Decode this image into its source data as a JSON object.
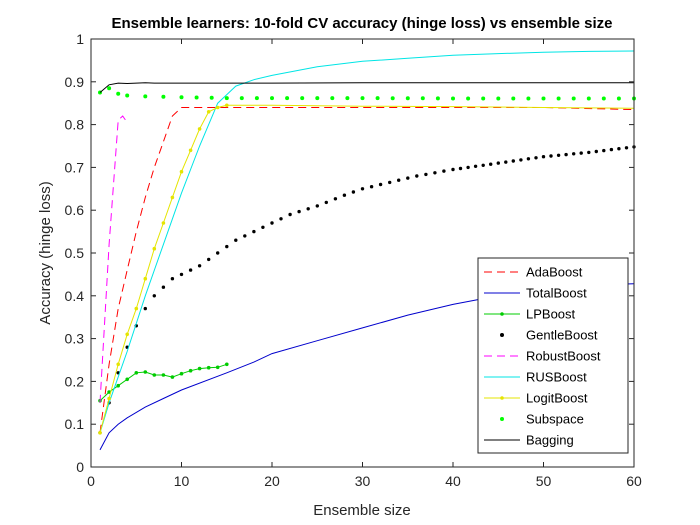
{
  "chart_data": {
    "type": "line",
    "title": "Ensemble learners: 10-fold CV accuracy (hinge loss) vs ensemble size",
    "xlabel": "Ensemble size",
    "ylabel": "Accuracy (hinge loss)",
    "xlim": [
      0,
      60
    ],
    "ylim": [
      0,
      1
    ],
    "xticks": [
      0,
      10,
      20,
      30,
      40,
      50,
      60
    ],
    "yticks": [
      0,
      0.1,
      0.2,
      0.3,
      0.4,
      0.5,
      0.6,
      0.7,
      0.8,
      0.9,
      1
    ],
    "xtick_labels": [
      "0",
      "10",
      "20",
      "30",
      "40",
      "50",
      "60"
    ],
    "ytick_labels": [
      "0",
      "0.1",
      "0.2",
      "0.3",
      "0.4",
      "0.5",
      "0.6",
      "0.7",
      "0.8",
      "0.9",
      "1"
    ],
    "grid": false,
    "legend_position": "bottom-right",
    "series": [
      {
        "name": "AdaBoost",
        "color": "#ff0000",
        "style": "dashed",
        "x": [
          1,
          2,
          3,
          4,
          5,
          6,
          7,
          8,
          9,
          10,
          12,
          15,
          20,
          30,
          40,
          50,
          60
        ],
        "y": [
          0.08,
          0.24,
          0.37,
          0.46,
          0.55,
          0.63,
          0.7,
          0.76,
          0.82,
          0.84,
          0.84,
          0.84,
          0.84,
          0.84,
          0.84,
          0.84,
          0.835
        ]
      },
      {
        "name": "TotalBoost",
        "color": "#0000cc",
        "style": "solid",
        "x": [
          1,
          2,
          3,
          4,
          6,
          8,
          10,
          15,
          18,
          20,
          25,
          30,
          35,
          40,
          45,
          50,
          55,
          60
        ],
        "y": [
          0.04,
          0.08,
          0.1,
          0.115,
          0.14,
          0.16,
          0.18,
          0.22,
          0.245,
          0.265,
          0.295,
          0.325,
          0.355,
          0.38,
          0.4,
          0.415,
          0.425,
          0.428
        ]
      },
      {
        "name": "LPBoost",
        "color": "#00cc00",
        "style": "solid-dot",
        "x": [
          1,
          2,
          3,
          4,
          5,
          6,
          7,
          8,
          9,
          10,
          11,
          12,
          13,
          14,
          15
        ],
        "y": [
          0.155,
          0.175,
          0.19,
          0.205,
          0.22,
          0.222,
          0.215,
          0.215,
          0.21,
          0.218,
          0.225,
          0.23,
          0.232,
          0.233,
          0.24
        ]
      },
      {
        "name": "GentleBoost",
        "color": "#000000",
        "style": "dotted",
        "x": [
          1,
          2,
          3,
          4,
          5,
          6,
          7,
          8,
          9,
          10,
          12,
          14,
          16,
          18,
          20,
          22,
          25,
          28,
          30,
          33,
          36,
          40,
          45,
          50,
          55,
          60
        ],
        "y": [
          0.08,
          0.15,
          0.22,
          0.28,
          0.33,
          0.37,
          0.4,
          0.42,
          0.44,
          0.45,
          0.47,
          0.5,
          0.53,
          0.55,
          0.57,
          0.59,
          0.61,
          0.635,
          0.65,
          0.665,
          0.68,
          0.695,
          0.71,
          0.725,
          0.735,
          0.748
        ]
      },
      {
        "name": "RobustBoost",
        "color": "#ff00ff",
        "style": "dashed",
        "x": [
          1,
          2,
          3,
          3.5,
          4
        ],
        "y": [
          0.15,
          0.52,
          0.81,
          0.82,
          0.805
        ]
      },
      {
        "name": "RUSBoost",
        "color": "#00e5e5",
        "style": "solid",
        "x": [
          1,
          2,
          4,
          6,
          8,
          10,
          12,
          14,
          15,
          16,
          18,
          20,
          25,
          30,
          35,
          40,
          45,
          50,
          55,
          60
        ],
        "y": [
          0.08,
          0.15,
          0.27,
          0.4,
          0.52,
          0.64,
          0.75,
          0.85,
          0.87,
          0.89,
          0.905,
          0.915,
          0.935,
          0.948,
          0.955,
          0.962,
          0.966,
          0.969,
          0.971,
          0.972
        ]
      },
      {
        "name": "LogitBoost",
        "color": "#e5e500",
        "style": "solid-dot",
        "x": [
          1,
          2,
          3,
          4,
          5,
          6,
          7,
          8,
          9,
          10,
          11,
          12,
          13,
          14,
          15,
          20,
          30,
          40,
          50,
          60
        ],
        "y": [
          0.08,
          0.16,
          0.24,
          0.31,
          0.37,
          0.44,
          0.51,
          0.57,
          0.63,
          0.69,
          0.74,
          0.79,
          0.83,
          0.84,
          0.845,
          0.845,
          0.843,
          0.842,
          0.84,
          0.838
        ]
      },
      {
        "name": "Subspace",
        "color": "#00ff00",
        "style": "dotted",
        "x": [
          1,
          2,
          3,
          4,
          6,
          8,
          10,
          15,
          20,
          30,
          40,
          50,
          60
        ],
        "y": [
          0.875,
          0.885,
          0.872,
          0.868,
          0.866,
          0.865,
          0.864,
          0.862,
          0.862,
          0.862,
          0.861,
          0.861,
          0.861
        ]
      },
      {
        "name": "Bagging",
        "color": "#000000",
        "style": "solid",
        "x": [
          1,
          2,
          3,
          4,
          5,
          6,
          7,
          8,
          10,
          15,
          20,
          30,
          40,
          50,
          60
        ],
        "y": [
          0.875,
          0.893,
          0.897,
          0.896,
          0.897,
          0.898,
          0.897,
          0.897,
          0.897,
          0.897,
          0.897,
          0.898,
          0.898,
          0.898,
          0.898
        ]
      }
    ]
  }
}
